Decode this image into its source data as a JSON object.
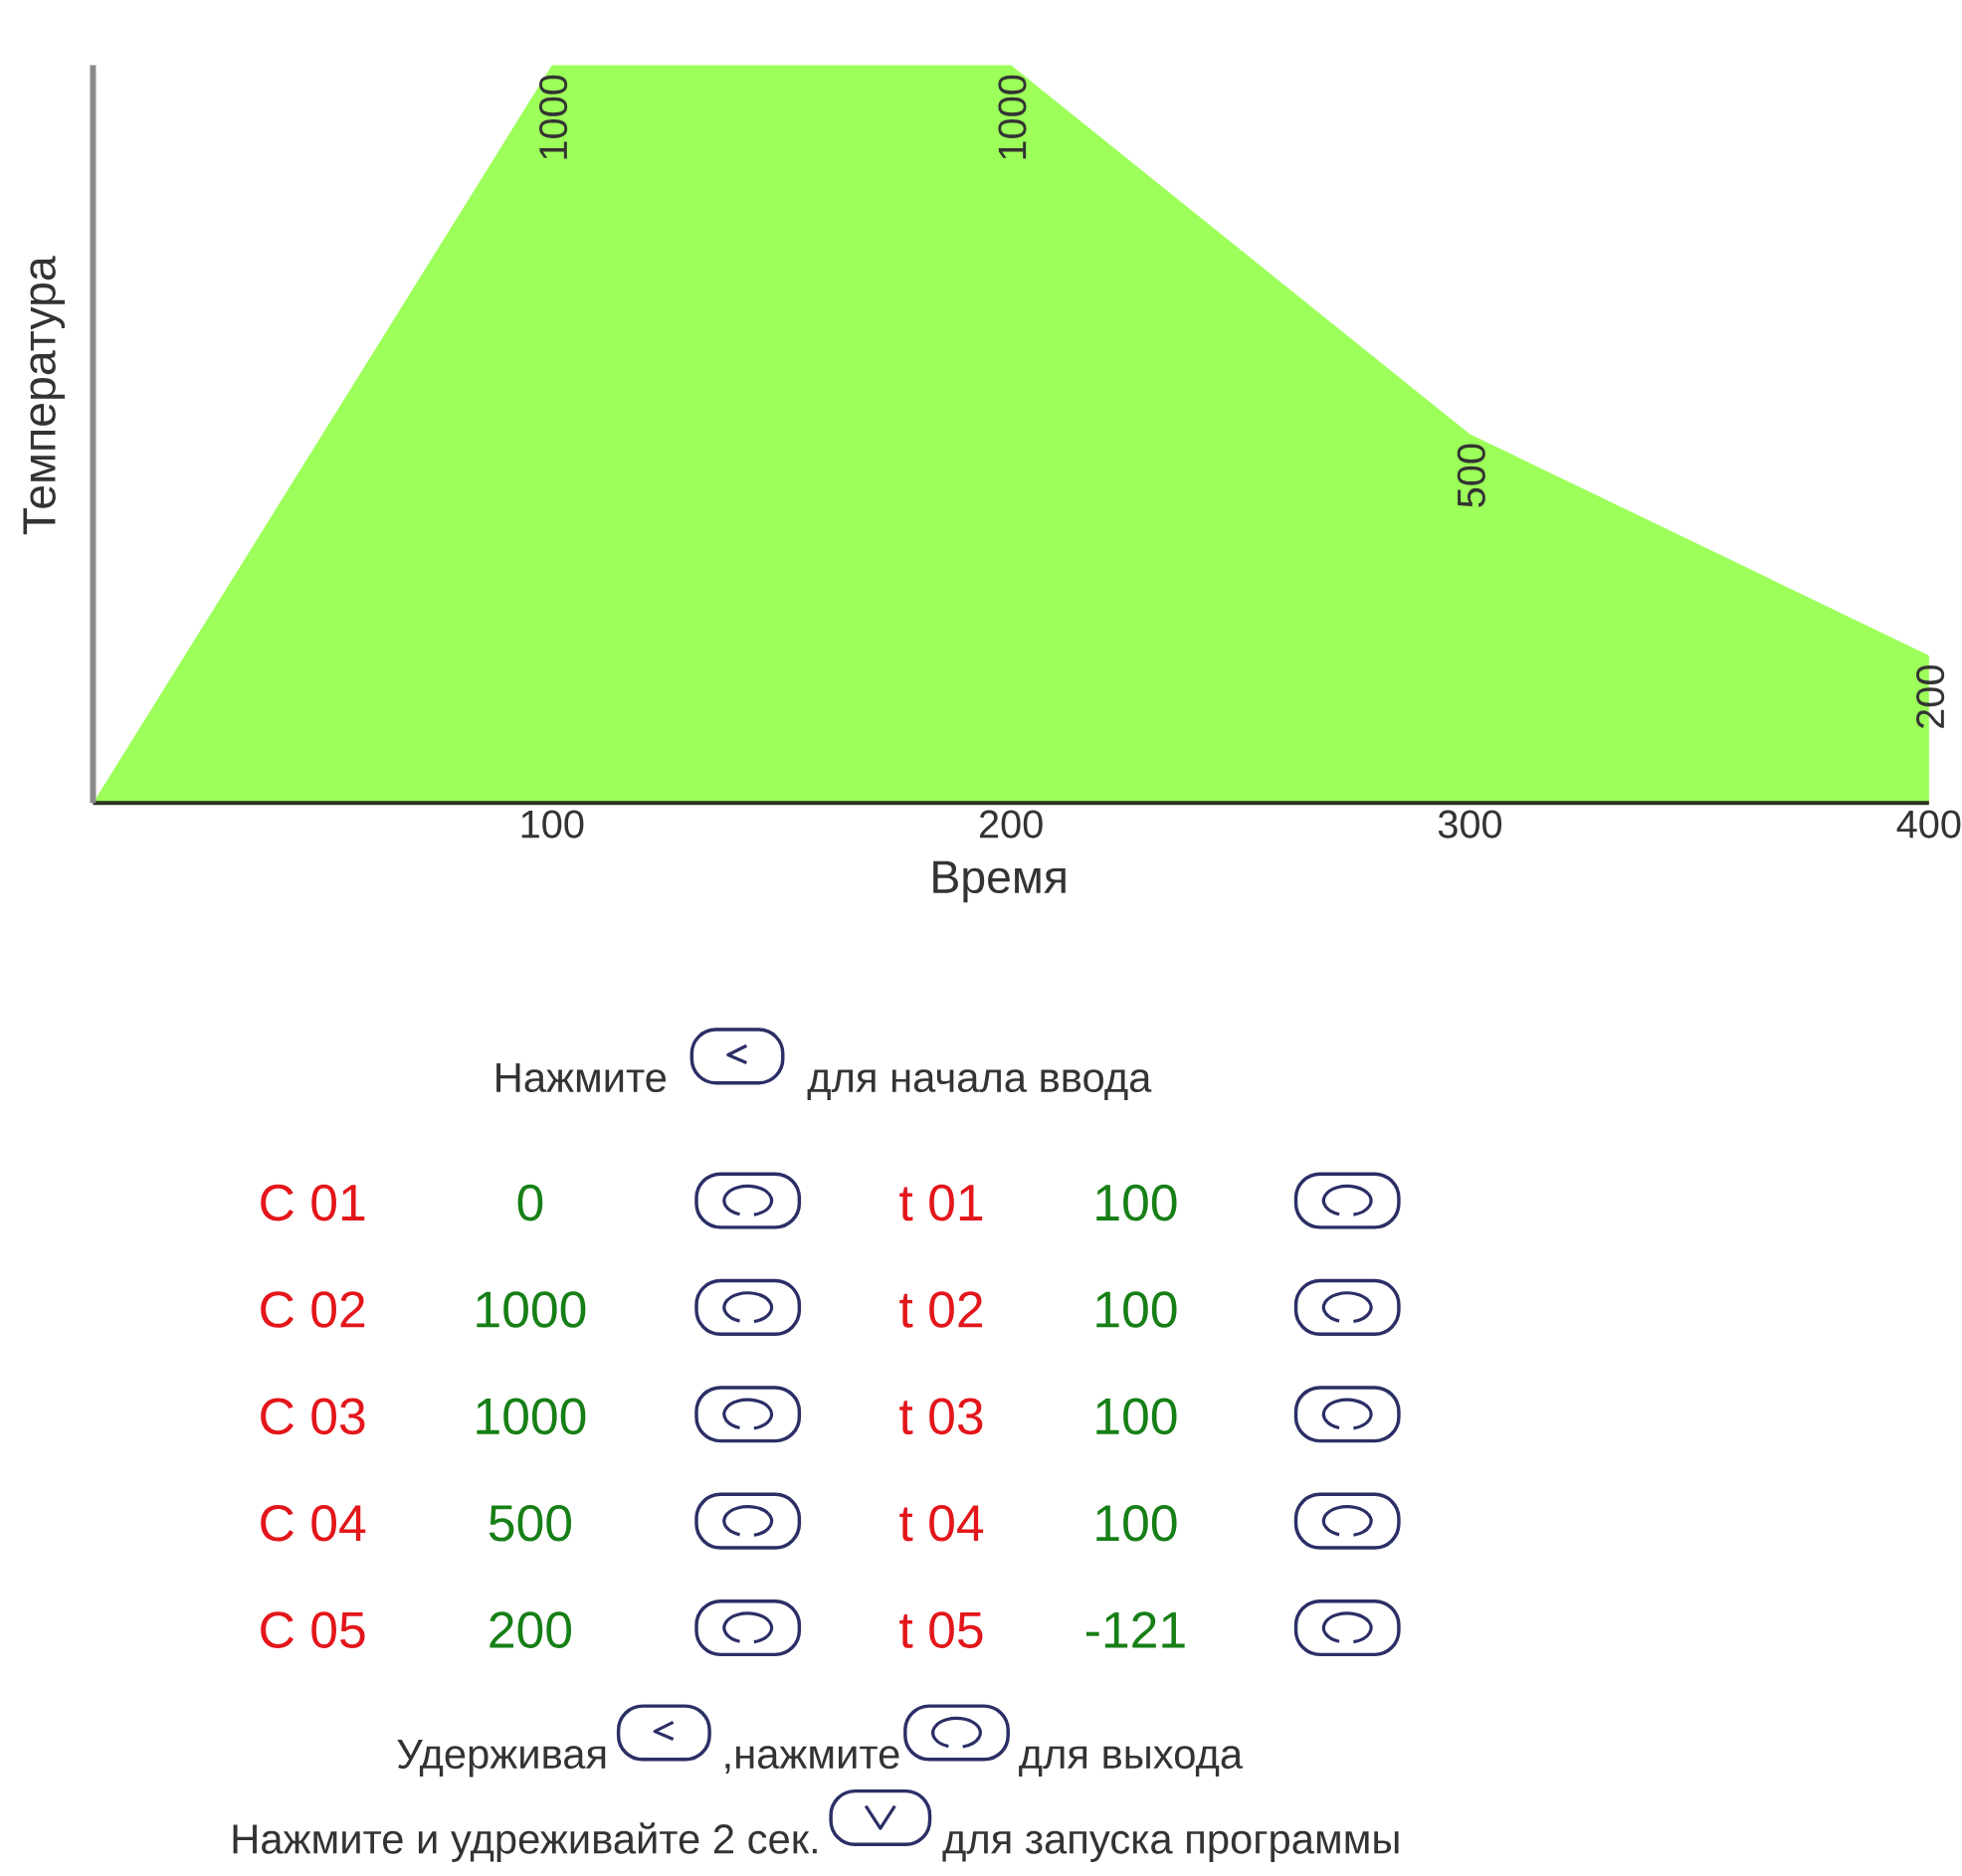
{
  "chart_data": {
    "type": "area",
    "xlabel": "Время",
    "ylabel": "Температура",
    "x": [
      0,
      100,
      200,
      300,
      400
    ],
    "values": [
      0,
      1000,
      1000,
      500,
      200
    ],
    "value_labels": [
      null,
      "1000",
      "1000",
      "500",
      "200"
    ],
    "color": "#9cff5a",
    "xlim": [
      0,
      400
    ],
    "xticks": [
      100,
      200,
      300,
      400
    ],
    "tick_labels": "x",
    "annotations": [
      "Нажмите",
      "для начала ввода",
      "C 01",
      "0",
      "t 01",
      "100",
      "C 02",
      "1000",
      "t 02",
      "100",
      "C 03",
      "1000",
      "t 03",
      "100",
      "C 04",
      "500",
      "t 04",
      "100",
      "C 05",
      "200",
      "t 05",
      "-121",
      "Удерживая",
      ",нажмите",
      "для выхода",
      "Нажмите и удреживайте 2 сек.",
      "для запуска программы"
    ]
  }
}
